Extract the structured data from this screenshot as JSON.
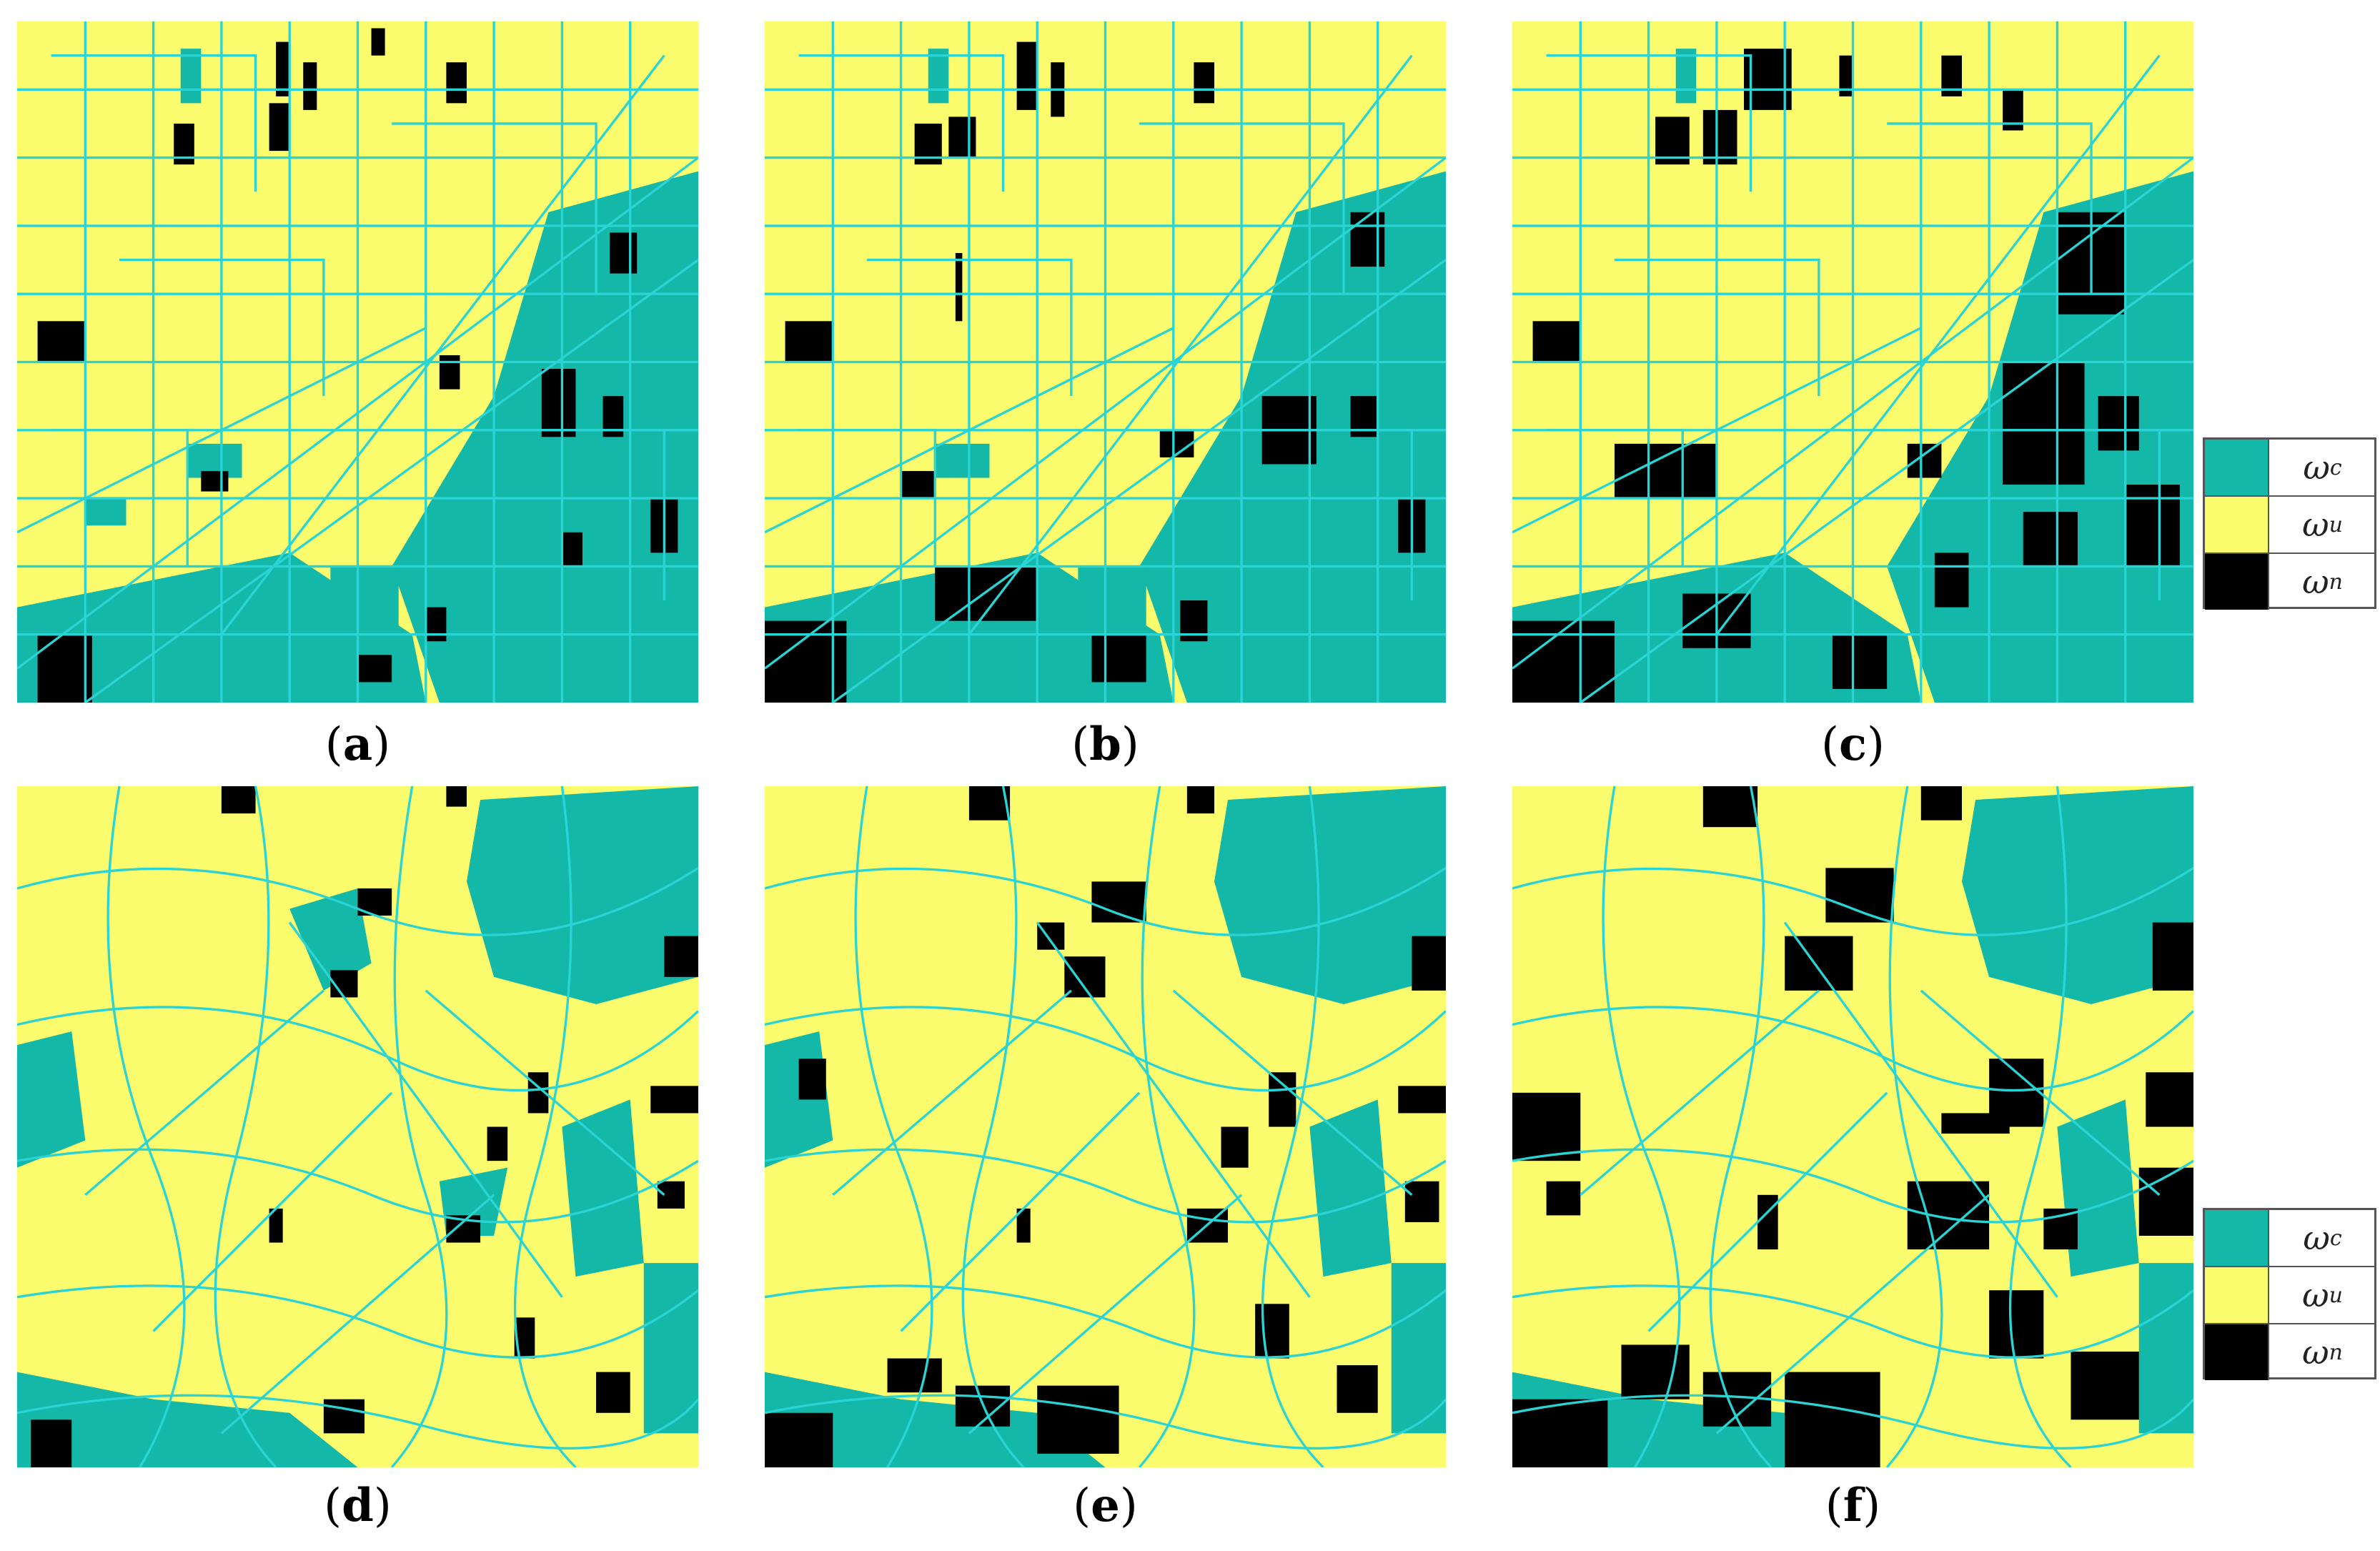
{
  "colors": {
    "changed": "#14b8a8",
    "unchanged": "#fbfb6e",
    "uncertain": "#000000",
    "boundary": "#2ad4d4"
  },
  "panels": [
    {
      "id": "a",
      "label": "a"
    },
    {
      "id": "b",
      "label": "b"
    },
    {
      "id": "c",
      "label": "c"
    },
    {
      "id": "d",
      "label": "d"
    },
    {
      "id": "e",
      "label": "e"
    },
    {
      "id": "f",
      "label": "f"
    }
  ],
  "legend": [
    {
      "symbol": "ω",
      "sub": "c",
      "color": "#14b8a8"
    },
    {
      "symbol": "ω",
      "sub": "u",
      "color": "#fbfb6e"
    },
    {
      "symbol": "ω",
      "sub": "n",
      "color": "#000000"
    }
  ]
}
